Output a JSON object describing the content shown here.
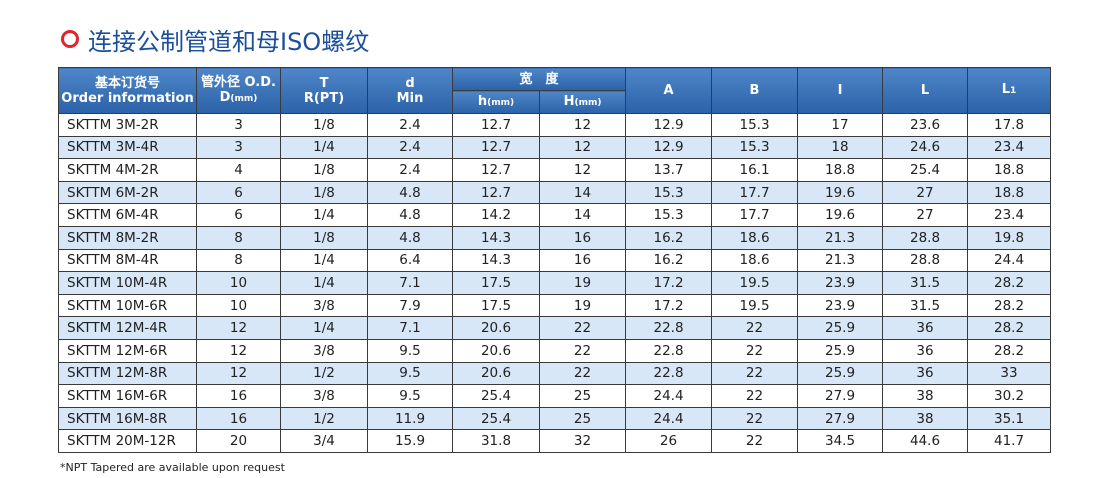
{
  "header": {
    "title": "连接公制管道和母ISO螺纹"
  },
  "table": {
    "lead_columns": [
      {
        "zh": "基本订货号",
        "en": "Order information"
      },
      {
        "zh": "管外径 O.D.",
        "sym": "D",
        "unit": "(mm)"
      },
      {
        "sym": "T",
        "en": "R(PT)"
      },
      {
        "sym": "d",
        "en": "Min"
      }
    ],
    "group": {
      "label": "宽　度",
      "columns": [
        {
          "sym": "h",
          "unit": "(mm)"
        },
        {
          "sym": "H",
          "unit": "(mm)"
        }
      ]
    },
    "tail_columns": [
      {
        "sym": "A"
      },
      {
        "sym": "B"
      },
      {
        "sym": "I"
      },
      {
        "sym": "L"
      },
      {
        "sym": "L",
        "sub": "1"
      }
    ],
    "rows": [
      [
        "SKTTM 3M-2R",
        "3",
        "1/8",
        "2.4",
        "12.7",
        "12",
        "12.9",
        "15.3",
        "17",
        "23.6",
        "17.8"
      ],
      [
        "SKTTM 3M-4R",
        "3",
        "1/4",
        "2.4",
        "12.7",
        "12",
        "12.9",
        "15.3",
        "18",
        "24.6",
        "23.4"
      ],
      [
        "SKTTM 4M-2R",
        "4",
        "1/8",
        "2.4",
        "12.7",
        "12",
        "13.7",
        "16.1",
        "18.8",
        "25.4",
        "18.8"
      ],
      [
        "SKTTM 6M-2R",
        "6",
        "1/8",
        "4.8",
        "12.7",
        "14",
        "15.3",
        "17.7",
        "19.6",
        "27",
        "18.8"
      ],
      [
        "SKTTM 6M-4R",
        "6",
        "1/4",
        "4.8",
        "14.2",
        "14",
        "15.3",
        "17.7",
        "19.6",
        "27",
        "23.4"
      ],
      [
        "SKTTM 8M-2R",
        "8",
        "1/8",
        "4.8",
        "14.3",
        "16",
        "16.2",
        "18.6",
        "21.3",
        "28.8",
        "19.8"
      ],
      [
        "SKTTM 8M-4R",
        "8",
        "1/4",
        "6.4",
        "14.3",
        "16",
        "16.2",
        "18.6",
        "21.3",
        "28.8",
        "24.4"
      ],
      [
        "SKTTM 10M-4R",
        "10",
        "1/4",
        "7.1",
        "17.5",
        "19",
        "17.2",
        "19.5",
        "23.9",
        "31.5",
        "28.2"
      ],
      [
        "SKTTM 10M-6R",
        "10",
        "3/8",
        "7.9",
        "17.5",
        "19",
        "17.2",
        "19.5",
        "23.9",
        "31.5",
        "28.2"
      ],
      [
        "SKTTM 12M-4R",
        "12",
        "1/4",
        "7.1",
        "20.6",
        "22",
        "22.8",
        "22",
        "25.9",
        "36",
        "28.2"
      ],
      [
        "SKTTM 12M-6R",
        "12",
        "3/8",
        "9.5",
        "20.6",
        "22",
        "22.8",
        "22",
        "25.9",
        "36",
        "28.2"
      ],
      [
        "SKTTM 12M-8R",
        "12",
        "1/2",
        "9.5",
        "20.6",
        "22",
        "22.8",
        "22",
        "25.9",
        "36",
        "33"
      ],
      [
        "SKTTM 16M-6R",
        "16",
        "3/8",
        "9.5",
        "25.4",
        "25",
        "24.4",
        "22",
        "27.9",
        "38",
        "30.2"
      ],
      [
        "SKTTM 16M-8R",
        "16",
        "1/2",
        "11.9",
        "25.4",
        "25",
        "24.4",
        "22",
        "27.9",
        "38",
        "35.1"
      ],
      [
        "SKTTM 20M-12R",
        "20",
        "3/4",
        "15.9",
        "31.8",
        "32",
        "26",
        "22",
        "34.5",
        "44.6",
        "41.7"
      ]
    ]
  },
  "footnote": "*NPT Tapered are available upon request"
}
